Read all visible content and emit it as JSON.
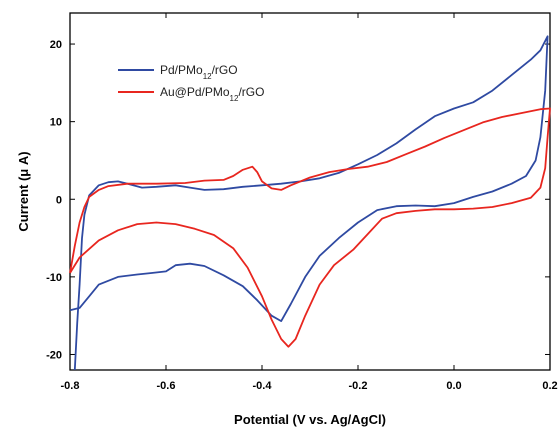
{
  "chart_data": {
    "type": "line",
    "title": "",
    "xlabel": "Potential (V vs. Ag/AgCl)",
    "ylabel": "Current (μ A)",
    "xlim": [
      -0.8,
      0.2
    ],
    "ylim": [
      -22,
      24
    ],
    "x_ticks": [
      "-0.8",
      "-0.6",
      "-0.4",
      "-0.2",
      "0.0",
      "0.2"
    ],
    "y_ticks": [
      "20",
      "10",
      "0",
      "-10",
      "-20"
    ],
    "x_tick_values": [
      -0.8,
      -0.6,
      -0.4,
      -0.2,
      0.0,
      0.2
    ],
    "y_tick_values": [
      20,
      10,
      0,
      -10,
      -20
    ],
    "grid": false,
    "legend_position": "top-left",
    "series": [
      {
        "name": "Pd/PMo12/rGO",
        "color": "#2f4aa2",
        "points": [
          [
            -0.79,
            -22
          ],
          [
            -0.785,
            -16
          ],
          [
            -0.78,
            -11
          ],
          [
            -0.775,
            -5
          ],
          [
            -0.77,
            -2
          ],
          [
            -0.76,
            0.5
          ],
          [
            -0.74,
            1.8
          ],
          [
            -0.72,
            2.2
          ],
          [
            -0.7,
            2.3
          ],
          [
            -0.68,
            2.0
          ],
          [
            -0.65,
            1.5
          ],
          [
            -0.62,
            1.6
          ],
          [
            -0.58,
            1.8
          ],
          [
            -0.55,
            1.5
          ],
          [
            -0.52,
            1.2
          ],
          [
            -0.48,
            1.3
          ],
          [
            -0.44,
            1.6
          ],
          [
            -0.4,
            1.8
          ],
          [
            -0.36,
            2.0
          ],
          [
            -0.32,
            2.3
          ],
          [
            -0.28,
            2.7
          ],
          [
            -0.24,
            3.4
          ],
          [
            -0.2,
            4.5
          ],
          [
            -0.16,
            5.7
          ],
          [
            -0.12,
            7.2
          ],
          [
            -0.08,
            9.0
          ],
          [
            -0.04,
            10.7
          ],
          [
            0.0,
            11.7
          ],
          [
            0.04,
            12.5
          ],
          [
            0.08,
            14.0
          ],
          [
            0.12,
            16.0
          ],
          [
            0.16,
            18.0
          ],
          [
            0.18,
            19.2
          ],
          [
            0.195,
            21.0
          ],
          [
            0.19,
            14.0
          ],
          [
            0.18,
            8.0
          ],
          [
            0.17,
            5.0
          ],
          [
            0.15,
            3.0
          ],
          [
            0.12,
            2.0
          ],
          [
            0.08,
            1.0
          ],
          [
            0.04,
            0.3
          ],
          [
            0.0,
            -0.5
          ],
          [
            -0.04,
            -0.9
          ],
          [
            -0.08,
            -0.8
          ],
          [
            -0.12,
            -0.9
          ],
          [
            -0.16,
            -1.4
          ],
          [
            -0.2,
            -3.0
          ],
          [
            -0.24,
            -5.0
          ],
          [
            -0.28,
            -7.3
          ],
          [
            -0.31,
            -10.0
          ],
          [
            -0.34,
            -13.5
          ],
          [
            -0.36,
            -15.7
          ],
          [
            -0.38,
            -15.0
          ],
          [
            -0.41,
            -13.0
          ],
          [
            -0.44,
            -11.2
          ],
          [
            -0.48,
            -9.8
          ],
          [
            -0.52,
            -8.6
          ],
          [
            -0.55,
            -8.3
          ],
          [
            -0.58,
            -8.5
          ],
          [
            -0.6,
            -9.3
          ],
          [
            -0.63,
            -9.5
          ],
          [
            -0.66,
            -9.7
          ],
          [
            -0.7,
            -10.0
          ],
          [
            -0.74,
            -11.0
          ],
          [
            -0.76,
            -12.5
          ],
          [
            -0.78,
            -14.0
          ],
          [
            -0.8,
            -14.3
          ]
        ]
      },
      {
        "name": "Au@Pd/PMo12/rGO",
        "color": "#e8261f",
        "points": [
          [
            -0.8,
            -9.5
          ],
          [
            -0.79,
            -6.0
          ],
          [
            -0.78,
            -3.0
          ],
          [
            -0.77,
            -1.0
          ],
          [
            -0.76,
            0.3
          ],
          [
            -0.74,
            1.2
          ],
          [
            -0.72,
            1.7
          ],
          [
            -0.68,
            2.0
          ],
          [
            -0.62,
            2.0
          ],
          [
            -0.56,
            2.1
          ],
          [
            -0.52,
            2.4
          ],
          [
            -0.48,
            2.5
          ],
          [
            -0.46,
            3.0
          ],
          [
            -0.44,
            3.8
          ],
          [
            -0.42,
            4.2
          ],
          [
            -0.41,
            3.5
          ],
          [
            -0.4,
            2.3
          ],
          [
            -0.38,
            1.4
          ],
          [
            -0.36,
            1.2
          ],
          [
            -0.34,
            1.8
          ],
          [
            -0.3,
            2.8
          ],
          [
            -0.26,
            3.5
          ],
          [
            -0.22,
            3.9
          ],
          [
            -0.18,
            4.2
          ],
          [
            -0.14,
            4.8
          ],
          [
            -0.1,
            5.8
          ],
          [
            -0.06,
            6.8
          ],
          [
            -0.02,
            7.9
          ],
          [
            0.02,
            8.9
          ],
          [
            0.06,
            9.9
          ],
          [
            0.1,
            10.6
          ],
          [
            0.14,
            11.1
          ],
          [
            0.18,
            11.6
          ],
          [
            0.2,
            11.7
          ],
          [
            0.195,
            8.0
          ],
          [
            0.19,
            4.0
          ],
          [
            0.18,
            1.5
          ],
          [
            0.16,
            0.2
          ],
          [
            0.12,
            -0.5
          ],
          [
            0.08,
            -1.0
          ],
          [
            0.04,
            -1.2
          ],
          [
            0.0,
            -1.3
          ],
          [
            -0.04,
            -1.3
          ],
          [
            -0.08,
            -1.5
          ],
          [
            -0.12,
            -1.8
          ],
          [
            -0.15,
            -2.5
          ],
          [
            -0.18,
            -4.5
          ],
          [
            -0.21,
            -6.5
          ],
          [
            -0.25,
            -8.5
          ],
          [
            -0.28,
            -11.0
          ],
          [
            -0.31,
            -15.0
          ],
          [
            -0.33,
            -18.0
          ],
          [
            -0.345,
            -19.0
          ],
          [
            -0.36,
            -18.0
          ],
          [
            -0.38,
            -15.5
          ],
          [
            -0.4,
            -12.5
          ],
          [
            -0.43,
            -8.8
          ],
          [
            -0.46,
            -6.3
          ],
          [
            -0.5,
            -4.6
          ],
          [
            -0.54,
            -3.8
          ],
          [
            -0.58,
            -3.2
          ],
          [
            -0.62,
            -3.0
          ],
          [
            -0.66,
            -3.2
          ],
          [
            -0.7,
            -4.0
          ],
          [
            -0.74,
            -5.3
          ],
          [
            -0.78,
            -7.5
          ],
          [
            -0.8,
            -9.5
          ]
        ]
      }
    ],
    "legend_labels": [
      {
        "name_base": "Pd/PMo",
        "sub": "12",
        "name_tail": "/rGO"
      },
      {
        "name_base": "Au@Pd/PMo",
        "sub": "12",
        "name_tail": "/rGO"
      }
    ]
  }
}
